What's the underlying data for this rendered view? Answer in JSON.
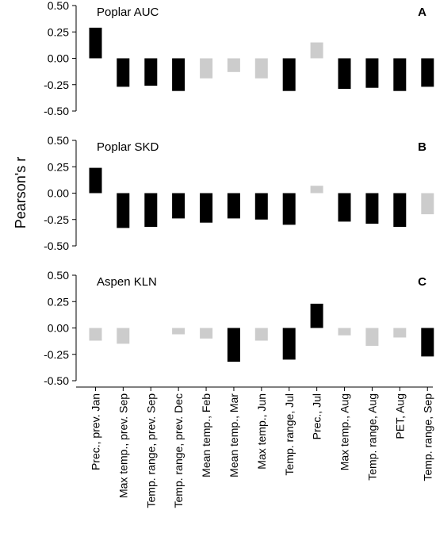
{
  "ylabel": "Pearson's r",
  "colors": {
    "significant": "#000000",
    "not_significant": "#cccccc"
  },
  "chart_data": [
    {
      "type": "bar",
      "panel_letter": "A",
      "title": "Poplar AUC",
      "ylim": [
        -0.5,
        0.5
      ],
      "yticks": [
        "0.50",
        "0.25",
        "0.00",
        "-0.25",
        "-0.50"
      ],
      "categories": [
        "Prec., prev. Jan",
        "Max temp., prev. Sep",
        "Temp. range, prev. Sep",
        "Temp. range, prev. Dec",
        "Mean temp., Feb",
        "Mean temp., Mar",
        "Max temp., Jun",
        "Temp. range, Jul",
        "Prec., Jul",
        "Max temp., Aug",
        "Temp. range, Aug",
        "PET, Aug",
        "Temp. range, Sep"
      ],
      "values": [
        0.29,
        -0.27,
        -0.26,
        -0.31,
        -0.19,
        -0.13,
        -0.19,
        -0.31,
        0.15,
        -0.29,
        -0.28,
        -0.31,
        -0.27
      ],
      "significant": [
        true,
        true,
        true,
        true,
        false,
        false,
        false,
        true,
        false,
        true,
        true,
        true,
        true
      ]
    },
    {
      "type": "bar",
      "panel_letter": "B",
      "title": "Poplar SKD",
      "ylim": [
        -0.5,
        0.5
      ],
      "yticks": [
        "0.50",
        "0.25",
        "0.00",
        "-0.25",
        "-0.50"
      ],
      "categories": [
        "Prec., prev. Jan",
        "Max temp., prev. Sep",
        "Temp. range, prev. Sep",
        "Temp. range, prev. Dec",
        "Mean temp., Feb",
        "Mean temp., Mar",
        "Max temp., Jun",
        "Temp. range, Jul",
        "Prec., Jul",
        "Max temp., Aug",
        "Temp. range, Aug",
        "PET, Aug",
        "Temp. range, Sep"
      ],
      "values": [
        0.24,
        -0.33,
        -0.32,
        -0.24,
        -0.28,
        -0.24,
        -0.25,
        -0.3,
        0.07,
        -0.27,
        -0.29,
        -0.32,
        -0.2
      ],
      "significant": [
        true,
        true,
        true,
        true,
        true,
        true,
        true,
        true,
        false,
        true,
        true,
        true,
        false
      ]
    },
    {
      "type": "bar",
      "panel_letter": "C",
      "title": "Aspen KLN",
      "ylim": [
        -0.5,
        0.5
      ],
      "yticks": [
        "0.50",
        "0.25",
        "0.00",
        "-0.25",
        "-0.50"
      ],
      "categories": [
        "Prec., prev. Jan",
        "Max temp., prev. Sep",
        "Temp. range, prev. Sep",
        "Temp. range, prev. Dec",
        "Mean temp., Feb",
        "Mean temp., Mar",
        "Max temp., Jun",
        "Temp. range, Jul",
        "Prec., Jul",
        "Max temp., Aug",
        "Temp. range, Aug",
        "PET, Aug",
        "Temp. range, Sep"
      ],
      "values": [
        -0.12,
        -0.15,
        0.0,
        -0.06,
        -0.1,
        -0.32,
        -0.12,
        -0.3,
        0.23,
        -0.07,
        -0.17,
        -0.09,
        -0.27
      ],
      "significant": [
        false,
        false,
        false,
        false,
        false,
        true,
        false,
        true,
        true,
        false,
        false,
        false,
        true
      ]
    }
  ]
}
